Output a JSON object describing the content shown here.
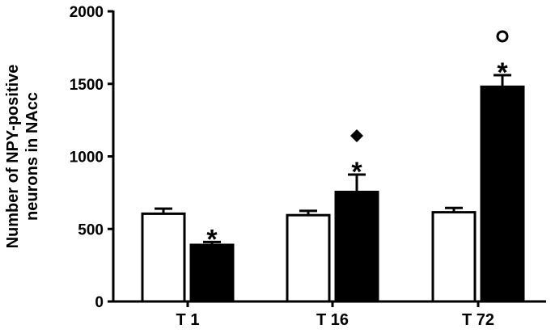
{
  "chart_data": {
    "type": "bar",
    "title": "",
    "xlabel": "",
    "ylabel_lines": [
      "Number of NPY-positive",
      "neurons in NAcc"
    ],
    "ylim": [
      0,
      2000
    ],
    "yticks": [
      0,
      500,
      1000,
      1500,
      2000
    ],
    "categories": [
      "T 1",
      "T 16",
      "T 72"
    ],
    "series": [
      {
        "fill": "#ffffff",
        "values": [
          605,
          595,
          615
        ],
        "errors": [
          35,
          30,
          30
        ]
      },
      {
        "fill": "#000000",
        "values": [
          390,
          755,
          1480
        ],
        "errors": [
          20,
          120,
          80
        ]
      }
    ],
    "annotations": [
      {
        "category": 0,
        "series": 1,
        "symbols": [
          "*"
        ]
      },
      {
        "category": 1,
        "series": 1,
        "symbols": [
          "*",
          "◆"
        ]
      },
      {
        "category": 2,
        "series": 1,
        "symbols": [
          "*",
          "○"
        ]
      }
    ],
    "grid": false,
    "legend": "none"
  }
}
